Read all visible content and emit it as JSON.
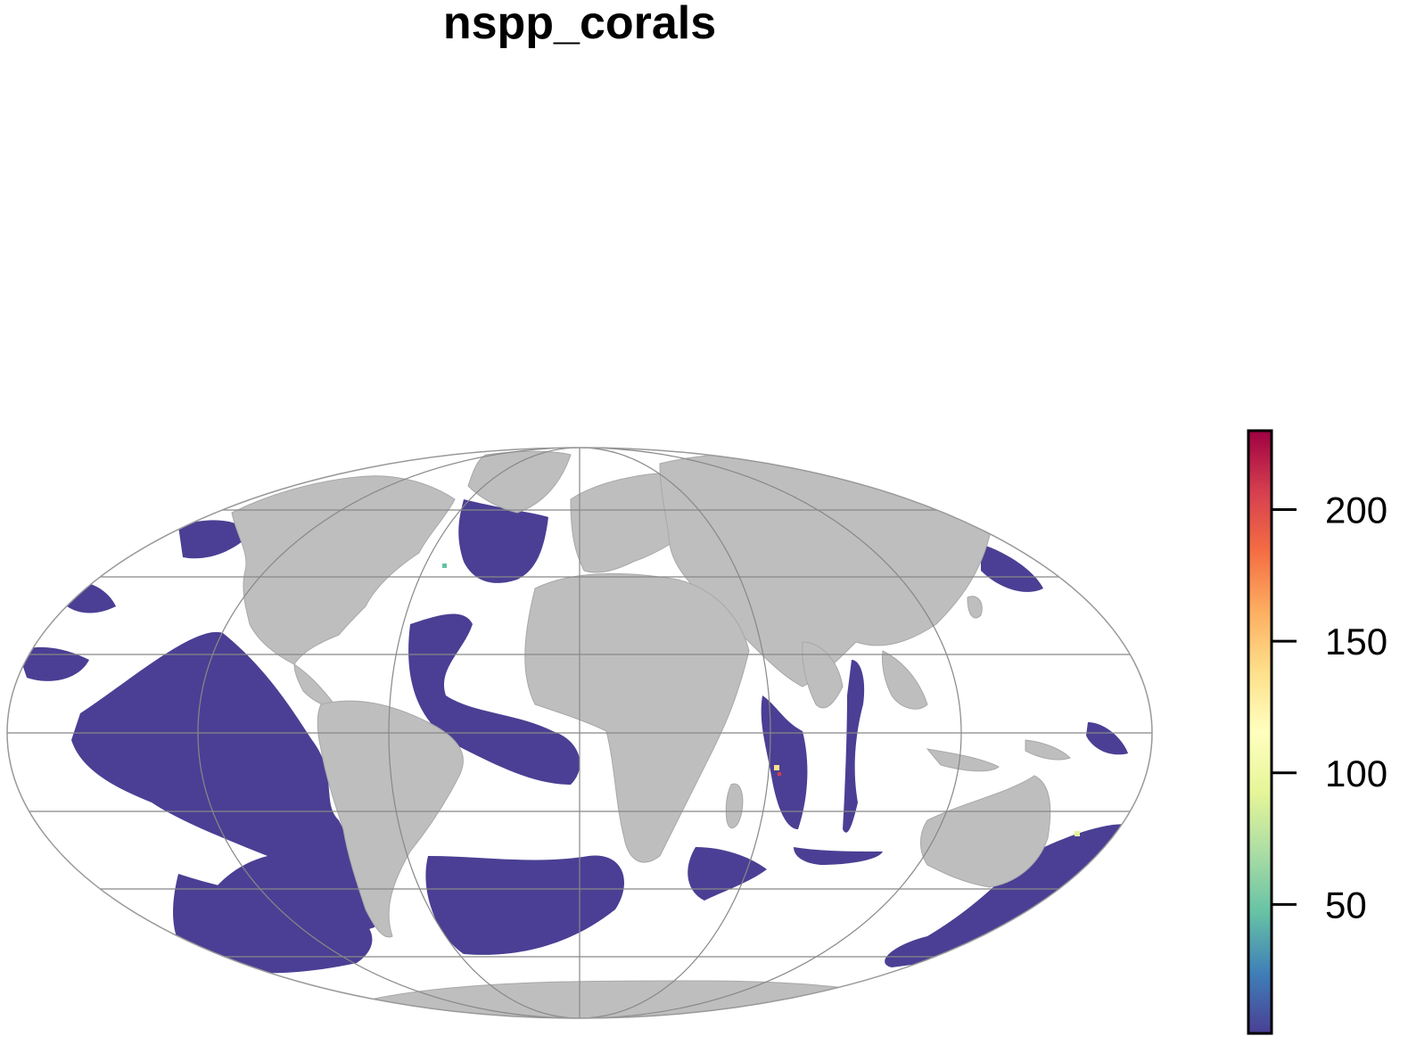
{
  "map": {
    "title": "nspp_corals",
    "projection": "Mollweide",
    "land_color": "#bebebe",
    "graticule_color": "#888888",
    "low_value_color": "#4a3f94"
  },
  "legend": {
    "type": "continuous colorbar",
    "range": [
      1,
      230
    ],
    "palette": "Spectral (reversed)",
    "colors": [
      "#4a3f94",
      "#3f7fb8",
      "#66c2a5",
      "#abdda4",
      "#e6f598",
      "#ffffbf",
      "#fee08b",
      "#fdae61",
      "#f46d43",
      "#d53e4f",
      "#9e0142"
    ],
    "ticks": [
      {
        "value": 50,
        "label": "50"
      },
      {
        "value": 100,
        "label": "100"
      },
      {
        "value": 150,
        "label": "150"
      },
      {
        "value": 200,
        "label": "200"
      }
    ]
  }
}
